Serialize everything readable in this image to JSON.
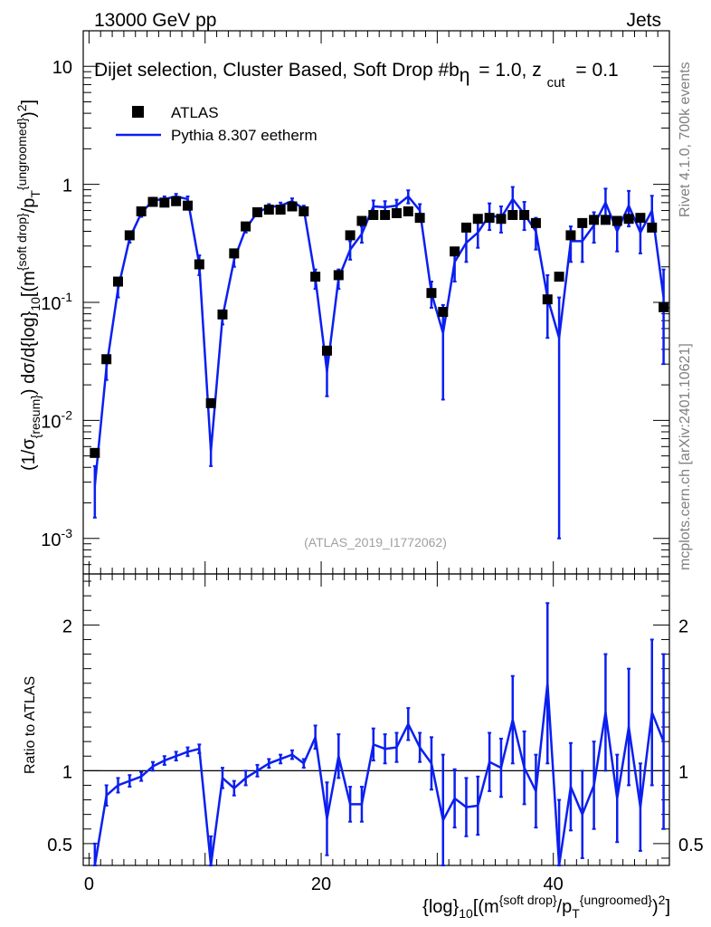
{
  "header": {
    "left": "13000 GeV pp",
    "right": "Jets"
  },
  "annotation": {
    "selection": "Dijet selection, Cluster Based, Soft Drop #b",
    "beta_label": "= 1.0, z",
    "zcut_sub": "cut",
    "zcut_val": "= 0.1",
    "beta_symbol": "η"
  },
  "legend": {
    "data_label": "ATLAS",
    "mc_label": "Pythia 8.307 eetherm"
  },
  "side_labels": {
    "rivet": "Rivet 4.1.0,  700k events",
    "mcplots": "mcplots.cern.ch [arXiv:2401.10621]"
  },
  "analysis_id": "(ATLAS_2019_I1772062)",
  "colors": {
    "mc": "#0b1ff0",
    "data": "#000000",
    "analysis": "#a0a0a0",
    "side": "#808080"
  },
  "chart_data": [
    {
      "type": "scatter",
      "panel": "main",
      "yscale": "log",
      "ylim": [
        0.0005,
        20
      ],
      "xlim": [
        -0.5,
        50
      ],
      "ylabel": "(1/σ_{resum}) dσ/d{log}_10[(m^{soft drop}/p_T^{ungroomed})^2]",
      "ytick_labels": [
        "10^{-3}",
        "10^{-2}",
        "10^{-1}",
        "1",
        "10"
      ],
      "x": [
        0.5,
        1.5,
        2.5,
        3.5,
        4.5,
        5.5,
        6.5,
        7.5,
        8.5,
        9.5,
        10.5,
        11.5,
        12.5,
        13.5,
        14.5,
        15.5,
        16.5,
        17.5,
        18.5,
        19.5,
        20.5,
        21.5,
        22.5,
        23.5,
        24.5,
        25.5,
        26.5,
        27.5,
        28.5,
        29.5,
        30.5,
        31.5,
        32.5,
        33.5,
        34.5,
        35.5,
        36.5,
        37.5,
        38.5,
        39.5,
        40.5,
        41.5,
        42.5,
        43.5,
        44.5,
        45.5,
        46.5,
        47.5,
        48.5,
        49.5
      ],
      "series": [
        {
          "name": "ATLAS",
          "style": "markers",
          "values": [
            0.0053,
            0.033,
            0.15,
            0.37,
            0.59,
            0.71,
            0.7,
            0.72,
            0.66,
            0.21,
            0.014,
            0.079,
            0.26,
            0.44,
            0.58,
            0.61,
            0.61,
            0.65,
            0.59,
            0.165,
            0.039,
            0.17,
            0.37,
            0.49,
            0.55,
            0.55,
            0.57,
            0.59,
            0.52,
            0.12,
            0.083,
            0.27,
            0.43,
            0.51,
            0.52,
            0.51,
            0.55,
            0.55,
            0.47,
            0.106,
            0.165,
            0.37,
            0.47,
            0.5,
            0.5,
            0.49,
            0.51,
            0.52,
            0.43,
            0.091
          ]
        },
        {
          "name": "Pythia 8.307 eetherm",
          "style": "line",
          "values": [
            0.0028,
            0.028,
            0.13,
            0.35,
            0.57,
            0.73,
            0.75,
            0.79,
            0.75,
            0.21,
            0.0055,
            0.075,
            0.23,
            0.42,
            0.58,
            0.64,
            0.66,
            0.72,
            0.62,
            0.16,
            0.026,
            0.16,
            0.28,
            0.38,
            0.65,
            0.64,
            0.66,
            0.79,
            0.6,
            0.12,
            0.055,
            0.22,
            0.32,
            0.39,
            0.55,
            0.52,
            0.75,
            0.56,
            0.4,
            0.11,
            0.05,
            0.33,
            0.33,
            0.45,
            0.7,
            0.4,
            0.66,
            0.39,
            0.6,
            0.11
          ],
          "err_low": [
            0.0013,
            0.006,
            0.02,
            0.03,
            0.04,
            0.04,
            0.04,
            0.04,
            0.04,
            0.04,
            0.0014,
            0.01,
            0.03,
            0.03,
            0.04,
            0.04,
            0.04,
            0.04,
            0.04,
            0.03,
            0.01,
            0.03,
            0.05,
            0.06,
            0.08,
            0.08,
            0.08,
            0.1,
            0.08,
            0.03,
            0.04,
            0.07,
            0.1,
            0.1,
            0.14,
            0.13,
            0.2,
            0.15,
            0.12,
            0.06,
            0.049,
            0.11,
            0.11,
            0.13,
            0.22,
            0.13,
            0.22,
            0.13,
            0.2,
            0.08
          ],
          "err_high": [
            0.0013,
            0.006,
            0.02,
            0.03,
            0.04,
            0.04,
            0.04,
            0.04,
            0.04,
            0.04,
            0.0014,
            0.01,
            0.03,
            0.03,
            0.04,
            0.04,
            0.04,
            0.04,
            0.04,
            0.03,
            0.01,
            0.03,
            0.05,
            0.06,
            0.08,
            0.08,
            0.08,
            0.1,
            0.08,
            0.03,
            0.04,
            0.07,
            0.1,
            0.1,
            0.14,
            0.13,
            0.2,
            0.15,
            0.12,
            0.06,
            0.06,
            0.11,
            0.11,
            0.13,
            0.22,
            0.13,
            0.22,
            0.13,
            0.2,
            0.08
          ]
        }
      ]
    },
    {
      "type": "line",
      "panel": "ratio",
      "ylabel": "Ratio to ATLAS",
      "ylim": [
        0.35,
        2.35
      ],
      "xlim": [
        -0.5,
        50
      ],
      "xlabel": "{log}_10[(m^{soft drop}/p_T^{ungroomed})^2]",
      "xtick_labels": [
        "0",
        "20",
        "40"
      ],
      "ytick_labels": [
        "0.5",
        "1",
        "2"
      ],
      "reference": 1,
      "x": [
        0.5,
        1.5,
        2.5,
        3.5,
        4.5,
        5.5,
        6.5,
        7.5,
        8.5,
        9.5,
        10.5,
        11.5,
        12.5,
        13.5,
        14.5,
        15.5,
        16.5,
        17.5,
        18.5,
        19.5,
        20.5,
        21.5,
        22.5,
        23.5,
        24.5,
        25.5,
        26.5,
        27.5,
        28.5,
        29.5,
        30.5,
        31.5,
        32.5,
        33.5,
        34.5,
        35.5,
        36.5,
        37.5,
        38.5,
        39.5,
        40.5,
        41.5,
        42.5,
        43.5,
        44.5,
        45.5,
        46.5,
        47.5,
        48.5,
        49.5
      ],
      "series": [
        {
          "name": "Pythia 8.307 eetherm / ATLAS",
          "values": [
            0.3,
            0.83,
            0.9,
            0.93,
            0.96,
            1.03,
            1.07,
            1.1,
            1.13,
            1.15,
            0.35,
            0.95,
            0.88,
            0.95,
            1.0,
            1.05,
            1.08,
            1.11,
            1.05,
            1.23,
            0.67,
            1.1,
            0.77,
            0.77,
            1.18,
            1.15,
            1.16,
            1.32,
            1.16,
            1.05,
            0.66,
            0.81,
            0.75,
            0.76,
            1.06,
            1.02,
            1.35,
            1.02,
            0.86,
            1.6,
            0.3,
            0.89,
            0.7,
            0.9,
            1.4,
            0.81,
            1.3,
            0.75,
            1.4,
            1.2
          ],
          "err": [
            0.2,
            0.07,
            0.05,
            0.04,
            0.03,
            0.03,
            0.03,
            0.03,
            0.03,
            0.03,
            0.2,
            0.07,
            0.05,
            0.05,
            0.04,
            0.03,
            0.03,
            0.03,
            0.03,
            0.08,
            0.25,
            0.15,
            0.12,
            0.12,
            0.11,
            0.1,
            0.1,
            0.11,
            0.1,
            0.18,
            0.45,
            0.2,
            0.2,
            0.2,
            0.2,
            0.2,
            0.3,
            0.25,
            0.25,
            0.55,
            0.5,
            0.3,
            0.3,
            0.3,
            0.4,
            0.3,
            0.4,
            0.3,
            0.5,
            0.6
          ]
        }
      ]
    }
  ]
}
